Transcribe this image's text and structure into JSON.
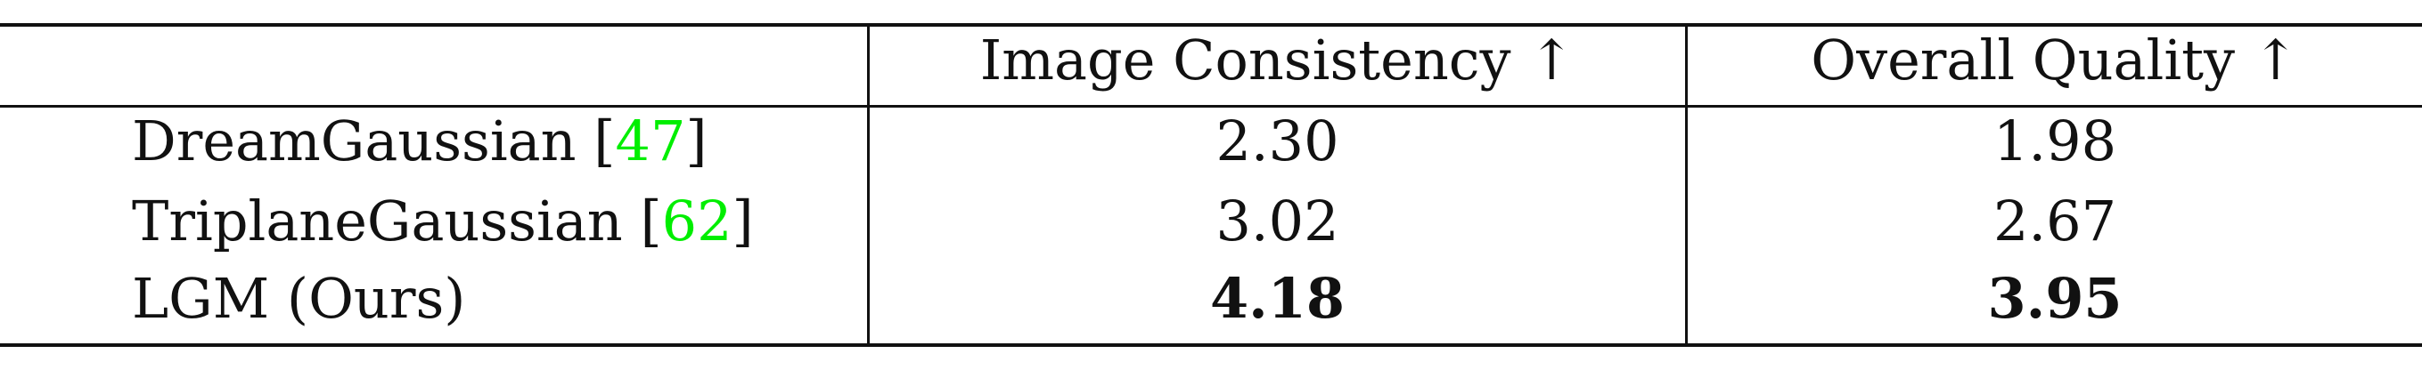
{
  "table": {
    "headers": [
      "",
      "Image Consistency ↑",
      "Overall Quality ↑"
    ],
    "rows": [
      {
        "method": "DreamGaussian",
        "open_bracket": "[",
        "citation": "47",
        "close_bracket": "]",
        "image_consistency": "2.30",
        "overall_quality": "1.98"
      },
      {
        "method": "TriplaneGaussian",
        "open_bracket": "[",
        "citation": "62",
        "close_bracket": "]",
        "image_consistency": "3.02",
        "overall_quality": "2.67"
      },
      {
        "method": "LGM (Ours)",
        "image_consistency": "4.18",
        "overall_quality": "3.95"
      }
    ],
    "citation_color": "#00ee00"
  }
}
